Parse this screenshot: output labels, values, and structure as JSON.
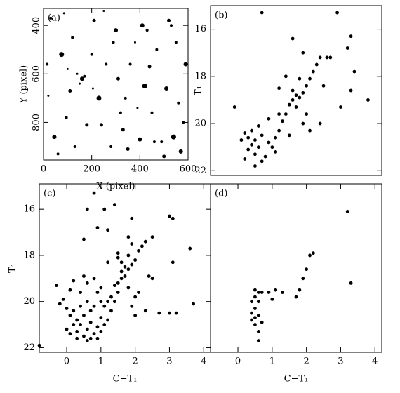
{
  "chart_data": [
    {
      "type": "scatter",
      "label": "(a)",
      "x_label": "X (pixel)",
      "y_label": "Y (pixel)",
      "xlim": [
        0,
        600
      ],
      "ylim": [
        955,
        330
      ],
      "xticks": [
        0,
        200,
        400,
        600
      ],
      "yticks": [
        400,
        600,
        800
      ],
      "color": "#000000",
      "x": [
        30,
        75,
        120,
        160,
        150,
        170,
        140,
        210,
        260,
        300,
        340,
        380,
        420,
        470,
        520,
        560,
        590,
        45,
        95,
        180,
        230,
        280,
        330,
        400,
        450,
        500,
        540,
        580,
        20,
        60,
        110,
        200,
        250,
        310,
        360,
        410,
        460,
        510,
        550,
        85,
        130,
        240,
        290,
        390,
        440,
        490,
        570,
        15,
        205,
        350,
        530,
        320,
        100,
        430
      ],
      "values": [
        370,
        520,
        450,
        620,
        640,
        610,
        600,
        380,
        560,
        420,
        700,
        470,
        650,
        500,
        380,
        720,
        560,
        860,
        780,
        810,
        700,
        900,
        830,
        870,
        760,
        940,
        860,
        800,
        690,
        930,
        670,
        520,
        340,
        620,
        560,
        400,
        880,
        660,
        470,
        350,
        900,
        810,
        470,
        740,
        570,
        880,
        920,
        560,
        660,
        910,
        400,
        760,
        580,
        420
      ],
      "sizes": [
        2,
        3.5,
        2,
        3,
        1.5,
        2,
        1.5,
        2.5,
        2,
        3,
        2,
        1.5,
        3.5,
        2,
        2.5,
        2,
        3,
        3,
        2,
        2.5,
        3.5,
        2,
        2.5,
        3,
        2,
        2.5,
        3.5,
        2,
        1.5,
        2,
        2.5,
        2,
        1.5,
        2.5,
        2,
        3,
        2,
        3,
        2,
        1.5,
        2,
        2.5,
        2,
        1.5,
        2.5,
        2,
        3,
        2,
        1.5,
        2.5,
        2,
        2,
        1.5,
        2
      ]
    },
    {
      "type": "scatter",
      "label": "(b)",
      "y_label": "T₁",
      "xlim": [
        -0.8,
        4.2
      ],
      "ylim": [
        22.2,
        15.0
      ],
      "yticks": [
        16,
        18,
        20,
        22
      ],
      "color": "#000000",
      "x": [
        -0.1,
        0.2,
        0.3,
        0.4,
        0.5,
        0.6,
        0.7,
        0.5,
        0.3,
        0.8,
        0.9,
        0.4,
        0.6,
        0.2,
        0.1,
        1.0,
        1.1,
        0.7,
        0.5,
        1.2,
        1.3,
        1.4,
        1.5,
        1.6,
        1.7,
        1.8,
        1.6,
        1.9,
        1.7,
        2.0,
        2.1,
        2.2,
        2.3,
        2.4,
        2.6,
        2.7,
        1.9,
        1.6,
        2.0,
        1.9,
        2.1,
        1.5,
        1.4,
        1.2,
        3.3,
        3.2,
        3.4,
        3.3,
        3.0,
        3.8,
        0.7,
        2.9,
        1.2,
        0.9,
        1.8,
        2.5,
        2.4,
        1.1
      ],
      "values": [
        19.3,
        20.4,
        20.6,
        20.9,
        20.7,
        21.0,
        20.5,
        21.3,
        21.1,
        21.4,
        20.8,
        20.3,
        20.1,
        21.5,
        20.7,
        21.0,
        20.6,
        21.6,
        21.8,
        20.3,
        19.9,
        19.6,
        19.2,
        19.0,
        18.8,
        18.9,
        18.6,
        18.7,
        19.3,
        18.4,
        18.1,
        17.8,
        17.5,
        17.2,
        17.2,
        17.2,
        17.0,
        16.4,
        19.6,
        20.0,
        20.3,
        20.5,
        18.0,
        18.5,
        16.3,
        16.8,
        17.8,
        18.6,
        19.3,
        19.0,
        15.3,
        15.3,
        19.6,
        19.8,
        18.1,
        18.4,
        20.0,
        21.2
      ]
    },
    {
      "type": "scatter",
      "label": "(c)",
      "x_label": "C−T₁",
      "y_label": "T₁",
      "xlim": [
        -0.8,
        4.2
      ],
      "ylim": [
        22.2,
        14.9
      ],
      "xticks": [
        0,
        1,
        2,
        3,
        4
      ],
      "yticks": [
        16,
        18,
        20,
        22
      ],
      "color": "#000000",
      "x": [
        0.2,
        0.3,
        0.4,
        0.5,
        0.6,
        0.7,
        0.8,
        0.5,
        0.4,
        0.6,
        0.3,
        0.9,
        1.0,
        0.7,
        0.2,
        0.1,
        0.0,
        -0.1,
        0.1,
        0.6,
        0.8,
        0.5,
        0.9,
        1.1,
        1.2,
        1.3,
        1.4,
        1.5,
        1.5,
        1.6,
        1.6,
        1.7,
        1.8,
        1.7,
        1.9,
        2.0,
        1.8,
        2.1,
        2.2,
        2.3,
        2.5,
        1.9,
        1.5,
        1.6,
        1.4,
        1.3,
        1.2,
        1.8,
        2.0,
        2.1,
        1.9,
        2.0,
        2.3,
        0.6,
        0.9,
        1.0,
        1.1,
        0.7,
        0.3,
        0.8,
        1.0,
        0.4,
        0.2,
        -0.2,
        -0.3,
        0.1,
        0.0,
        0.5,
        0.6,
        0.9,
        1.2,
        1.4,
        1.1,
        1.9,
        3.0,
        3.1,
        3.6,
        3.1,
        3.0,
        3.2,
        3.7,
        2.7,
        2.5,
        1.8,
        2.4,
        1.5,
        0.8,
        1.0,
        1.2,
        -0.8
      ],
      "values": [
        20.4,
        20.8,
        21.0,
        20.6,
        21.2,
        20.9,
        21.4,
        21.5,
        20.2,
        20.0,
        21.3,
        21.1,
        20.7,
        20.4,
        21.0,
        20.6,
        20.3,
        19.9,
        19.5,
        19.2,
        19.0,
        18.9,
        19.6,
        20.2,
        20.8,
        20.4,
        20.0,
        19.6,
        19.2,
        19.0,
        18.7,
        18.5,
        18.6,
        18.9,
        18.4,
        18.2,
        18.0,
        17.8,
        17.6,
        17.4,
        17.2,
        17.5,
        17.9,
        18.3,
        19.3,
        19.8,
        20.0,
        19.4,
        19.8,
        19.6,
        20.2,
        20.6,
        20.4,
        21.7,
        21.6,
        21.3,
        21.0,
        21.6,
        21.6,
        20.2,
        20.0,
        19.6,
        19.1,
        20.1,
        19.3,
        21.4,
        21.2,
        17.3,
        16.0,
        16.8,
        16.9,
        15.8,
        16.0,
        16.4,
        16.3,
        16.4,
        17.7,
        18.3,
        20.5,
        20.5,
        20.1,
        20.5,
        19.0,
        17.2,
        18.9,
        18.1,
        15.3,
        19.4,
        18.3,
        21.9
      ]
    },
    {
      "type": "scatter",
      "label": "(d)",
      "x_label": "C−T₁",
      "xlim": [
        -0.8,
        4.2
      ],
      "ylim": [
        22.2,
        14.9
      ],
      "xticks": [
        0,
        1,
        2,
        3,
        4
      ],
      "color": "#000000",
      "x": [
        0.5,
        0.6,
        0.7,
        0.9,
        1.1,
        1.3,
        0.5,
        0.4,
        0.6,
        0.5,
        0.4,
        0.5,
        0.6,
        0.4,
        0.5,
        0.6,
        0.7,
        0.6,
        1.0,
        1.7,
        1.8,
        1.9,
        2.0,
        2.1,
        2.2,
        3.2,
        3.3
      ],
      "values": [
        19.5,
        19.6,
        19.6,
        19.6,
        19.5,
        19.6,
        19.8,
        20.0,
        20.0,
        20.3,
        20.5,
        20.7,
        20.6,
        20.8,
        21.0,
        21.3,
        20.9,
        21.7,
        19.9,
        19.8,
        19.5,
        19.0,
        18.6,
        18.0,
        17.9,
        16.1,
        19.2
      ]
    }
  ]
}
